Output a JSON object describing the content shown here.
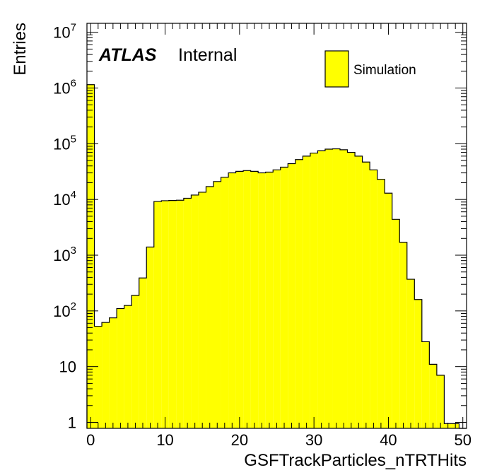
{
  "chart_data": {
    "type": "bar",
    "title": "",
    "xlabel": "GSFTrackParticles_nTRTHits",
    "ylabel": "Entries",
    "xlim": [
      -0.5,
      50.5
    ],
    "ylim": [
      0.78,
      14500000
    ],
    "y_scale": "log",
    "grid": false,
    "fill_color": "#ffff00",
    "line_color": "#000000",
    "x_ticks": [
      0,
      10,
      20,
      30,
      40,
      50
    ],
    "y_ticks": [
      {
        "value": 1,
        "base": "1",
        "exp": ""
      },
      {
        "value": 10,
        "base": "10",
        "exp": ""
      },
      {
        "value": 100,
        "base": "10",
        "exp": "2"
      },
      {
        "value": 1000,
        "base": "10",
        "exp": "3"
      },
      {
        "value": 10000,
        "base": "10",
        "exp": "4"
      },
      {
        "value": 100000,
        "base": "10",
        "exp": "5"
      },
      {
        "value": 1000000,
        "base": "10",
        "exp": "6"
      },
      {
        "value": 10000000,
        "base": "10",
        "exp": "7"
      }
    ],
    "legend": {
      "label": "Simulation",
      "position": "top-right"
    },
    "annotation": {
      "experiment": "ATLAS",
      "status": "Internal"
    },
    "bins": {
      "low_edge": -0.5,
      "width": 1,
      "values": [
        1150000,
        53,
        62,
        75,
        110,
        125,
        190,
        390,
        1400,
        9200,
        9500,
        9600,
        9700,
        10500,
        12000,
        13500,
        17000,
        21000,
        25000,
        30000,
        32000,
        33000,
        32000,
        30000,
        31000,
        34000,
        38000,
        44000,
        52000,
        60000,
        68000,
        75000,
        80000,
        81000,
        78000,
        70000,
        60000,
        47000,
        34000,
        23000,
        13000,
        4400,
        1700,
        370,
        160,
        28,
        11,
        7,
        0.95,
        0.95,
        0.55
      ]
    }
  }
}
